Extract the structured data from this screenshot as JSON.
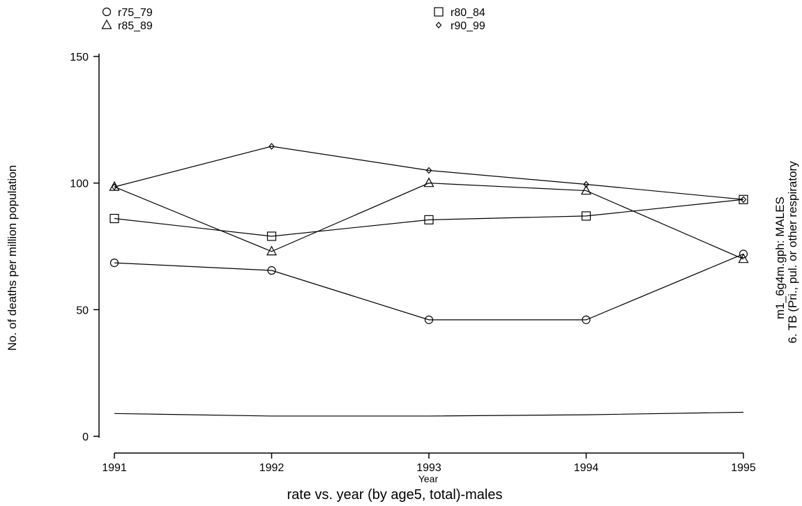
{
  "chart_data": {
    "type": "line",
    "title": "rate vs. year (by age5, total)-males",
    "xlabel": "Year",
    "ylabel": "No. of deaths per million population",
    "right_caption_line1": "m1_6g4m.gph: MALES",
    "right_caption_line2": "6.  TB (Pri., pul. or other respiratory",
    "x": [
      1991,
      1992,
      1993,
      1994,
      1995
    ],
    "x_ticks": [
      "1991",
      "1992",
      "1993",
      "1994",
      "1995"
    ],
    "y_ticks": [
      "0",
      "50",
      "100",
      "150"
    ],
    "ylim": [
      0,
      150
    ],
    "grid": false,
    "legend_position": "top",
    "series": [
      {
        "name": "r75_79",
        "marker": "circle",
        "values": [
          68.5,
          65.5,
          46,
          46,
          72
        ]
      },
      {
        "name": "r80_84",
        "marker": "square",
        "values": [
          86,
          79,
          85.5,
          87,
          93.5
        ]
      },
      {
        "name": "r85_89",
        "marker": "triangle",
        "values": [
          98.5,
          73,
          100,
          97,
          70
        ]
      },
      {
        "name": "r90_99",
        "marker": "diamond",
        "values": [
          98.5,
          114.5,
          105,
          99.5,
          93.5
        ]
      },
      {
        "marker": "none",
        "values": [
          9,
          8,
          8,
          8.5,
          9.5
        ]
      }
    ]
  }
}
